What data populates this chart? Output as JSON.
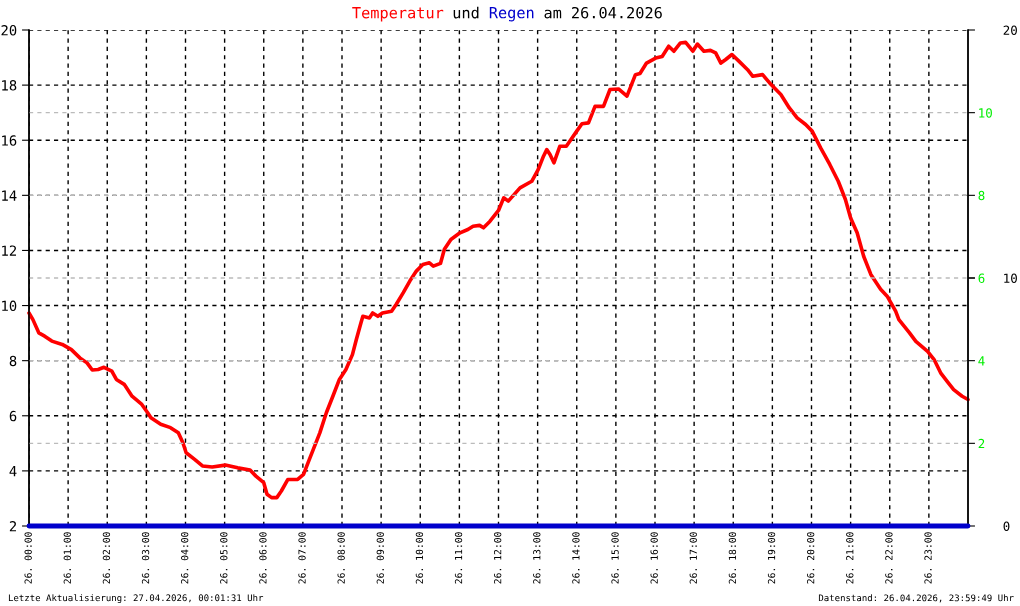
{
  "chart_data": {
    "type": "line",
    "title": "Temperatur und Regen am 26.04.2026",
    "x": [
      "2026-04-26T00:00",
      "2026-04-26T00:06",
      "2026-04-26T00:15",
      "2026-04-26T00:24",
      "2026-04-26T00:35",
      "2026-04-26T00:51",
      "2026-04-26T01:05",
      "2026-04-26T01:18",
      "2026-04-26T01:29",
      "2026-04-26T01:37",
      "2026-04-26T01:46",
      "2026-04-26T01:55",
      "2026-04-26T02:07",
      "2026-04-26T02:14",
      "2026-04-26T02:26",
      "2026-04-26T02:38",
      "2026-04-26T02:53",
      "2026-04-26T03:02",
      "2026-04-26T03:07",
      "2026-04-26T03:22",
      "2026-04-26T03:37",
      "2026-04-26T03:49",
      "2026-04-26T03:56",
      "2026-04-26T04:01",
      "2026-04-26T04:14",
      "2026-04-26T04:26",
      "2026-04-26T04:41",
      "2026-04-26T05:01",
      "2026-04-26T05:20",
      "2026-04-26T05:39",
      "2026-04-26T05:48",
      "2026-04-26T06:00",
      "2026-04-26T06:05",
      "2026-04-26T06:12",
      "2026-04-26T06:20",
      "2026-04-26T06:27",
      "2026-04-26T06:37",
      "2026-04-26T06:52",
      "2026-04-26T07:01",
      "2026-04-26T07:08",
      "2026-04-26T07:16",
      "2026-04-26T07:26",
      "2026-04-26T07:36",
      "2026-04-26T07:46",
      "2026-04-26T07:56",
      "2026-04-26T08:06",
      "2026-04-26T08:16",
      "2026-04-26T08:22",
      "2026-04-26T08:29",
      "2026-04-26T08:32",
      "2026-04-26T08:42",
      "2026-04-26T08:47",
      "2026-04-26T08:55",
      "2026-04-26T09:02",
      "2026-04-26T09:16",
      "2026-04-26T09:23",
      "2026-04-26T09:34",
      "2026-04-26T09:44",
      "2026-04-26T09:54",
      "2026-04-26T10:04",
      "2026-04-26T10:14",
      "2026-04-26T10:20",
      "2026-04-26T10:31",
      "2026-04-26T10:37",
      "2026-04-26T10:47",
      "2026-04-26T11:01",
      "2026-04-26T11:13",
      "2026-04-26T11:21",
      "2026-04-26T11:31",
      "2026-04-26T11:37",
      "2026-04-26T11:47",
      "2026-04-26T12:00",
      "2026-04-26T12:08",
      "2026-04-26T12:15",
      "2026-04-26T12:33",
      "2026-04-26T12:51",
      "2026-04-26T13:01",
      "2026-04-26T13:09",
      "2026-04-26T13:14",
      "2026-04-26T13:19",
      "2026-04-26T13:25",
      "2026-04-26T13:34",
      "2026-04-26T13:44",
      "2026-04-26T14:00",
      "2026-04-26T14:08",
      "2026-04-26T14:18",
      "2026-04-26T14:28",
      "2026-04-26T14:41",
      "2026-04-26T14:51",
      "2026-04-26T15:04",
      "2026-04-26T15:17",
      "2026-04-26T15:30",
      "2026-04-26T15:37",
      "2026-04-26T15:47",
      "2026-04-26T16:01",
      "2026-04-26T16:11",
      "2026-04-26T16:21",
      "2026-04-26T16:29",
      "2026-04-26T16:39",
      "2026-04-26T16:47",
      "2026-04-26T16:58",
      "2026-04-26T17:05",
      "2026-04-26T17:15",
      "2026-04-26T17:25",
      "2026-04-26T17:33",
      "2026-04-26T17:41",
      "2026-04-26T17:48",
      "2026-04-26T17:58",
      "2026-04-26T18:09",
      "2026-04-26T18:22",
      "2026-04-26T18:30",
      "2026-04-26T18:45",
      "2026-04-26T18:58",
      "2026-04-26T19:13",
      "2026-04-26T19:26",
      "2026-04-26T19:38",
      "2026-04-26T19:51",
      "2026-04-26T20:01",
      "2026-04-26T20:14",
      "2026-04-26T20:28",
      "2026-04-26T20:41",
      "2026-04-26T20:52",
      "2026-04-26T21:00",
      "2026-04-26T21:10",
      "2026-04-26T21:20",
      "2026-04-26T21:31",
      "2026-04-26T21:46",
      "2026-04-26T21:56",
      "2026-04-26T22:09",
      "2026-04-26T22:14",
      "2026-04-26T22:30",
      "2026-04-26T22:40",
      "2026-04-26T22:58",
      "2026-04-26T23:08",
      "2026-04-26T23:18",
      "2026-04-26T23:28",
      "2026-04-26T23:38",
      "2026-04-26T23:51",
      "2026-04-27T00:00"
    ],
    "series": [
      {
        "color": "#ff0000",
        "values": [
          9.73,
          9.49,
          9.01,
          8.89,
          8.71,
          8.59,
          8.4,
          8.1,
          7.92,
          7.66,
          7.68,
          7.76,
          7.62,
          7.32,
          7.14,
          6.71,
          6.41,
          6.11,
          5.93,
          5.69,
          5.57,
          5.38,
          5.02,
          4.66,
          4.42,
          4.18,
          4.14,
          4.21,
          4.11,
          4.03,
          3.81,
          3.57,
          3.15,
          3.03,
          3.03,
          3.27,
          3.69,
          3.69,
          3.87,
          4.3,
          4.78,
          5.38,
          6.11,
          6.71,
          7.32,
          7.68,
          8.22,
          8.77,
          9.37,
          9.61,
          9.55,
          9.73,
          9.61,
          9.73,
          9.79,
          10.04,
          10.47,
          10.89,
          11.25,
          11.49,
          11.55,
          11.43,
          11.53,
          12.04,
          12.4,
          12.64,
          12.76,
          12.88,
          12.91,
          12.82,
          13.06,
          13.45,
          13.91,
          13.79,
          14.27,
          14.51,
          14.94,
          15.42,
          15.66,
          15.48,
          15.18,
          15.78,
          15.78,
          16.33,
          16.6,
          16.63,
          17.23,
          17.23,
          17.84,
          17.86,
          17.6,
          18.38,
          18.42,
          18.8,
          18.98,
          19.04,
          19.41,
          19.23,
          19.53,
          19.55,
          19.23,
          19.49,
          19.23,
          19.26,
          19.17,
          18.8,
          18.92,
          19.11,
          18.86,
          18.56,
          18.32,
          18.38,
          18.02,
          17.66,
          17.17,
          16.81,
          16.57,
          16.33,
          15.72,
          15.12,
          14.51,
          13.85,
          13.18,
          12.64,
          11.79,
          11.13,
          10.59,
          10.34,
          9.8,
          9.49,
          9.02,
          8.7,
          8.34,
          8.04,
          7.56,
          7.25,
          6.95,
          6.71,
          6.59
        ]
      },
      {
        "color": "#0000cc",
        "axis": "y2",
        "x": [
          "2026-04-26T00:00",
          "2026-04-27T00:00"
        ],
        "values": [
          0,
          0
        ]
      }
    ],
    "xlim": [
      "2026-04-26T00:00",
      "2026-04-27T00:00"
    ],
    "xticks": [
      {
        "value": "2026-04-26T00:00",
        "label": "26. 00:00"
      },
      {
        "value": "2026-04-26T01:00",
        "label": "26. 01:00"
      },
      {
        "value": "2026-04-26T02:00",
        "label": "26. 02:00"
      },
      {
        "value": "2026-04-26T03:00",
        "label": "26. 03:00"
      },
      {
        "value": "2026-04-26T04:00",
        "label": "26. 04:00"
      },
      {
        "value": "2026-04-26T05:00",
        "label": "26. 05:00"
      },
      {
        "value": "2026-04-26T06:00",
        "label": "26. 06:00"
      },
      {
        "value": "2026-04-26T07:00",
        "label": "26. 07:00"
      },
      {
        "value": "2026-04-26T08:00",
        "label": "26. 08:00"
      },
      {
        "value": "2026-04-26T09:00",
        "label": "26. 09:00"
      },
      {
        "value": "2026-04-26T10:00",
        "label": "26. 10:00"
      },
      {
        "value": "2026-04-26T11:00",
        "label": "26. 11:00"
      },
      {
        "value": "2026-04-26T12:00",
        "label": "26. 12:00"
      },
      {
        "value": "2026-04-26T13:00",
        "label": "26. 13:00"
      },
      {
        "value": "2026-04-26T14:00",
        "label": "26. 14:00"
      },
      {
        "value": "2026-04-26T15:00",
        "label": "26. 15:00"
      },
      {
        "value": "2026-04-26T16:00",
        "label": "26. 16:00"
      },
      {
        "value": "2026-04-26T17:00",
        "label": "26. 17:00"
      },
      {
        "value": "2026-04-26T18:00",
        "label": "26. 18:00"
      },
      {
        "value": "2026-04-26T19:00",
        "label": "26. 19:00"
      },
      {
        "value": "2026-04-26T20:00",
        "label": "26. 20:00"
      },
      {
        "value": "2026-04-26T21:00",
        "label": "26. 21:00"
      },
      {
        "value": "2026-04-26T22:00",
        "label": "26. 22:00"
      },
      {
        "value": "2026-04-26T23:00",
        "label": "26. 23:00"
      }
    ],
    "ylim": [
      2,
      20
    ],
    "yticks": [
      2,
      4,
      6,
      8,
      10,
      12,
      14,
      16,
      18,
      20
    ],
    "y2lim": [
      0,
      12
    ],
    "y2ticks": [
      2,
      4,
      6,
      8,
      10
    ],
    "y3lim": [
      0,
      20
    ],
    "y3ticks": [
      0,
      10,
      20
    ],
    "grid": true,
    "line_style": "solid",
    "marker": "none",
    "annotations": [
      "Letzte Aktualisierung: 27.04.2026, 00:01:31 Uhr",
      "Datenstand: 26.04.2026, 23:59:49 Uhr"
    ]
  }
}
